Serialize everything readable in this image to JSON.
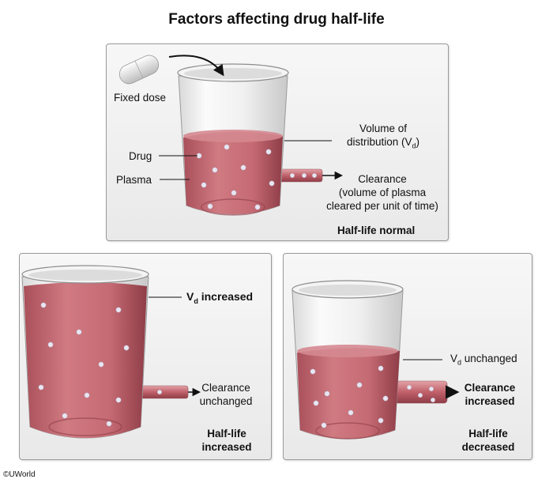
{
  "title": "Factors affecting drug half-life",
  "colors": {
    "plasma": "#c0606a",
    "plasma_dark": "#8e3d47",
    "panel_border": "#9a9a9a",
    "drug_particle": "#e8e6f2"
  },
  "icons": [
    "pill-icon",
    "beaker-icon",
    "arrow-icon"
  ],
  "panel_normal": {
    "fixed_dose": "Fixed dose",
    "drug": "Drug",
    "plasma": "Plasma",
    "vd_line1": "Volume of",
    "vd_line2_prefix": "distribution (V",
    "vd_line2_sub": "d",
    "vd_line2_suffix": ")",
    "clearance_line1": "Clearance",
    "clearance_line2": "(volume of plasma",
    "clearance_line3": "cleared per unit of time)",
    "outcome": "Half-life normal"
  },
  "panel_increased": {
    "vd_prefix": "V",
    "vd_sub": "d",
    "vd_suffix": " increased",
    "clearance_line1": "Clearance",
    "clearance_line2": "unchanged",
    "outcome_line1": "Half-life",
    "outcome_line2": "increased"
  },
  "panel_decreased": {
    "vd_prefix": "V",
    "vd_sub": "d",
    "vd_suffix": " unchanged",
    "clearance_line1": "Clearance",
    "clearance_line2": "increased",
    "outcome_line1": "Half-life",
    "outcome_line2": "decreased"
  },
  "copyright": "©UWorld"
}
